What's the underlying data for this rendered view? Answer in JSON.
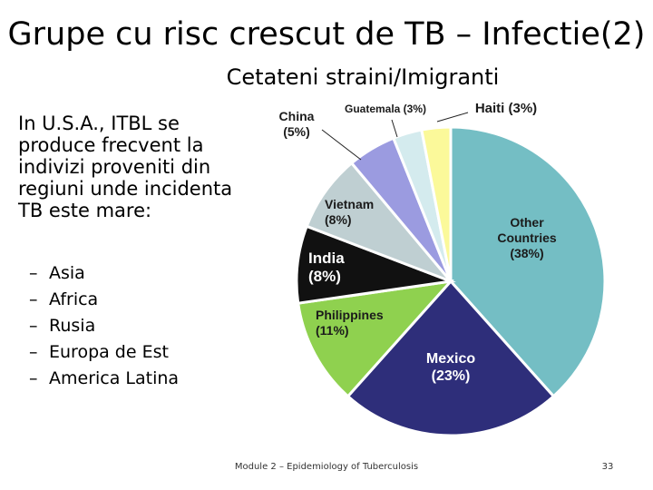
{
  "slide": {
    "title": "Grupe cu risc crescut de TB – Infectie(2)",
    "subtitle": "Cetateni straini/Imigranti",
    "intro": "In U.S.A., ITBL se produce frecvent la indivizi proveniti din regiuni unde incidenta TB este mare:",
    "bullets": [
      "Asia",
      "Africa",
      "Rusia",
      "Europa de Est",
      "America Latina"
    ],
    "bullet_marker": "–",
    "footer": "Module 2 – Epidemiology of Tuberculosis",
    "page_number": "33"
  },
  "chart_data": {
    "type": "pie",
    "slices": [
      {
        "label": "Other Countries",
        "value": 38,
        "display": "(38%)",
        "color": "#74bec4",
        "text_color": "#1b1b1b"
      },
      {
        "label": "Mexico",
        "value": 23,
        "display": "(23%)",
        "color": "#2e2e7a",
        "text_color": "#ffffff"
      },
      {
        "label": "Philippines",
        "value": 11,
        "display": "(11%)",
        "color": "#8fd14f",
        "text_color": "#1b1b1b"
      },
      {
        "label": "India",
        "value": 8,
        "display": "(8%)",
        "color": "#111111",
        "text_color": "#ffffff"
      },
      {
        "label": "Vietnam",
        "value": 8,
        "display": "(8%)",
        "color": "#bfcfd2",
        "text_color": "#1b1b1b"
      },
      {
        "label": "China",
        "value": 5,
        "display": "(5%)",
        "color": "#9b9be0",
        "text_color": "#1b1b1b"
      },
      {
        "label": "Guatemala",
        "value": 3,
        "display": "(3%)",
        "color": "#d4ebee",
        "text_color": "#1b1b1b"
      },
      {
        "label": "Haiti",
        "value": 3,
        "display": "(3%)",
        "color": "#fbf99a",
        "text_color": "#1b1b1b"
      }
    ]
  }
}
